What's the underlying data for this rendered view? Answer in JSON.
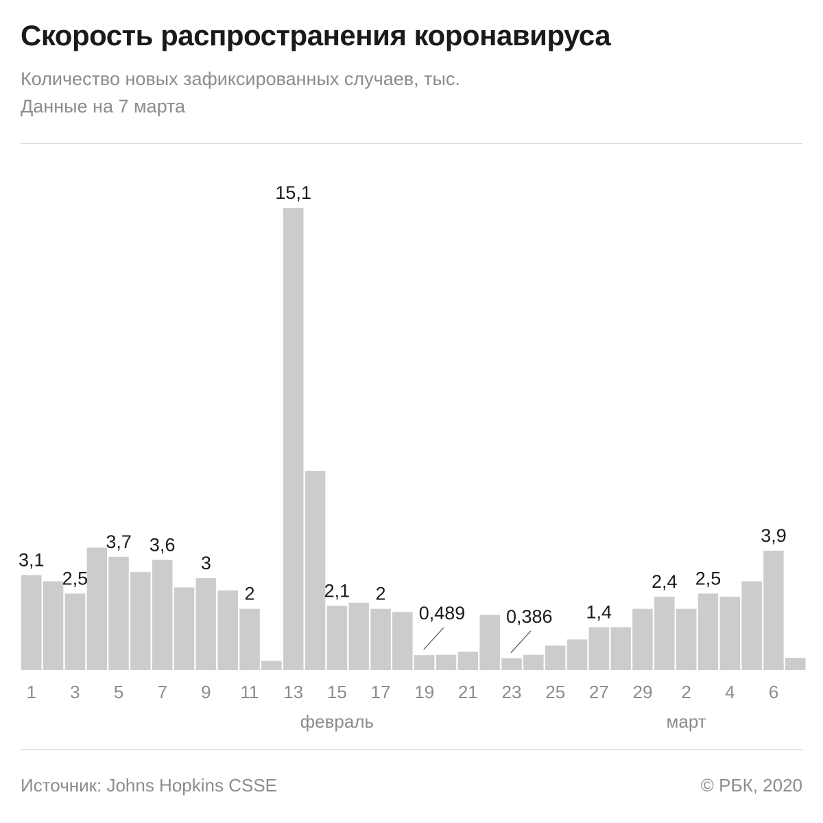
{
  "header": {
    "title": "Скорость распространения коронавируса",
    "subtitle_1": "Количество новых зафиксированных случаев, тыс.",
    "subtitle_2": "Данные на 7 марта"
  },
  "footer": {
    "source": "Источник: Johns Hopkins CSSE",
    "copyright": "© РБК, 2020"
  },
  "colors": {
    "bar": "#cccccc",
    "text": "#1a1a1a",
    "muted": "#8c8c8c"
  },
  "chart_data": {
    "type": "bar",
    "ylim": [
      0,
      16
    ],
    "grid": false,
    "legend": "none",
    "categories": [
      "1",
      "2",
      "3",
      "4",
      "5",
      "6",
      "7",
      "8",
      "9",
      "10",
      "11",
      "12",
      "13",
      "14",
      "15",
      "16",
      "17",
      "18",
      "19",
      "20",
      "21",
      "22",
      "23",
      "24",
      "25",
      "26",
      "27",
      "28",
      "29",
      "1",
      "2",
      "3",
      "4",
      "5",
      "6",
      "7"
    ],
    "values": [
      3.1,
      2.9,
      2.5,
      4.0,
      3.7,
      3.2,
      3.6,
      2.7,
      3.0,
      2.6,
      2.0,
      0.3,
      15.1,
      6.5,
      2.1,
      2.2,
      2.0,
      1.9,
      0.489,
      0.5,
      0.6,
      1.8,
      0.386,
      0.5,
      0.8,
      1.0,
      1.4,
      1.4,
      2.0,
      2.4,
      2.0,
      2.5,
      2.4,
      2.9,
      3.9,
      0.4
    ],
    "data_labels": [
      {
        "index": 0,
        "text": "3,1"
      },
      {
        "index": 2,
        "text": "2,5"
      },
      {
        "index": 4,
        "text": "3,7"
      },
      {
        "index": 6,
        "text": "3,6"
      },
      {
        "index": 8,
        "text": "3"
      },
      {
        "index": 10,
        "text": "2"
      },
      {
        "index": 12,
        "text": "15,1"
      },
      {
        "index": 14,
        "text": "2,1"
      },
      {
        "index": 16,
        "text": "2"
      },
      {
        "index": 18,
        "text": "0,489",
        "leader": true
      },
      {
        "index": 22,
        "text": "0,386",
        "leader": true
      },
      {
        "index": 26,
        "text": "1,4"
      },
      {
        "index": 29,
        "text": "2,4"
      },
      {
        "index": 31,
        "text": "2,5"
      },
      {
        "index": 34,
        "text": "3,9"
      }
    ],
    "tick_labels": [
      {
        "index": 0,
        "text": "1"
      },
      {
        "index": 2,
        "text": "3"
      },
      {
        "index": 4,
        "text": "5"
      },
      {
        "index": 6,
        "text": "7"
      },
      {
        "index": 8,
        "text": "9"
      },
      {
        "index": 10,
        "text": "11"
      },
      {
        "index": 12,
        "text": "13"
      },
      {
        "index": 14,
        "text": "15"
      },
      {
        "index": 16,
        "text": "17"
      },
      {
        "index": 18,
        "text": "19"
      },
      {
        "index": 20,
        "text": "21"
      },
      {
        "index": 22,
        "text": "23"
      },
      {
        "index": 24,
        "text": "25"
      },
      {
        "index": 26,
        "text": "27"
      },
      {
        "index": 28,
        "text": "29"
      },
      {
        "index": 30,
        "text": "2"
      },
      {
        "index": 32,
        "text": "4"
      },
      {
        "index": 34,
        "text": "6"
      }
    ],
    "month_labels": [
      {
        "index": 14,
        "text": "февраль"
      },
      {
        "index": 30,
        "text": "март"
      }
    ]
  }
}
